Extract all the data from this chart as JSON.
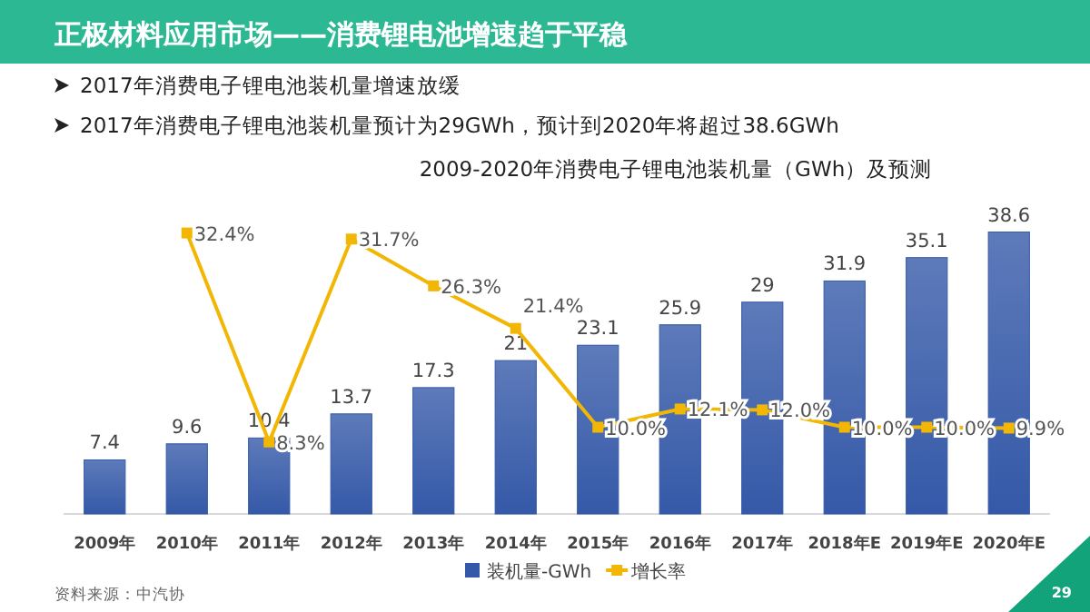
{
  "chart_data": {
    "type": "bar",
    "title": "正极材料应用市场——消费锂电池增速趋于平稳",
    "subtitle": "2009-2020年消费电子锂电池装机量（GWh）及预测",
    "annotations": [
      "2017年消费电子锂电池装机量增速放缓",
      "2017年消费电子锂电池装机量预计为29GWh，预计到2020年将超过38.6GWh",
      "资料来源：中汽协",
      "29"
    ],
    "categories": [
      "2009年",
      "2010年",
      "2011年",
      "2012年",
      "2013年",
      "2014年",
      "2015年",
      "2016年",
      "2017年",
      "2018年E",
      "2019年E",
      "2020年E"
    ],
    "series": [
      {
        "name": "装机量-GWh",
        "color": "#3559a8",
        "values": [
          7.4,
          9.6,
          10.4,
          13.7,
          17.3,
          21,
          23.1,
          25.9,
          29,
          31.9,
          35.1,
          38.6
        ],
        "value_labels": [
          "7.4",
          "9.6",
          "10.4",
          "13.7",
          "17.3",
          "21",
          "23.1",
          "25.9",
          "29",
          "31.9",
          "35.1",
          "38.6"
        ]
      },
      {
        "name": "增长率",
        "type": "line",
        "axis": "y2",
        "color": "#f2b705",
        "marker": "square",
        "values": [
          null,
          32.4,
          8.3,
          31.7,
          26.3,
          21.4,
          10.0,
          12.1,
          12.0,
          10.0,
          10.0,
          9.9
        ],
        "value_labels": [
          null,
          "32.4%",
          "8.3%",
          "31.7%",
          "26.3%",
          "21.4%",
          "10.0%",
          "12.1%",
          "12.0%",
          "10.0%",
          "10.0%",
          "9.9%"
        ]
      }
    ],
    "tick_labels": "x",
    "legend": "bottom"
  }
}
